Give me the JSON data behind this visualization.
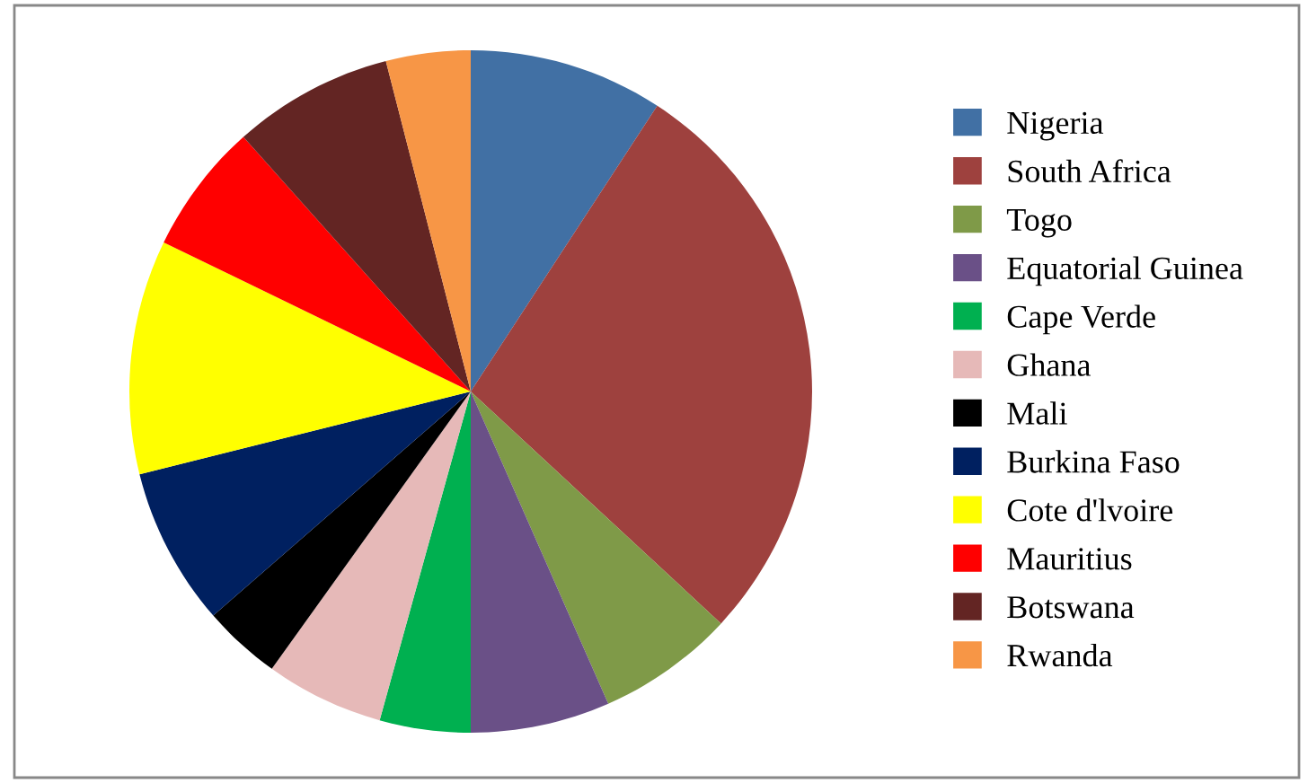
{
  "chart_data": {
    "type": "pie",
    "categories": [
      "Nigeria",
      "South Africa",
      "Togo",
      "Equatorial Guinea",
      "Cape Verde",
      "Ghana",
      "Mali",
      "Burkina Faso",
      "Cote d'lvoire",
      "Mauritius",
      "Botswana",
      "Rwanda"
    ],
    "values": [
      9.2,
      27.7,
      6.5,
      6.6,
      4.3,
      5.6,
      3.7,
      7.5,
      11.1,
      6.2,
      7.6,
      4.0
    ],
    "colors": [
      "#4170a4",
      "#9e413e",
      "#7f9a48",
      "#6a5087",
      "#00b050",
      "#e6b9b8",
      "#000000",
      "#002060",
      "#ffff00",
      "#ff0000",
      "#632523",
      "#f79646"
    ],
    "legend": "right"
  }
}
